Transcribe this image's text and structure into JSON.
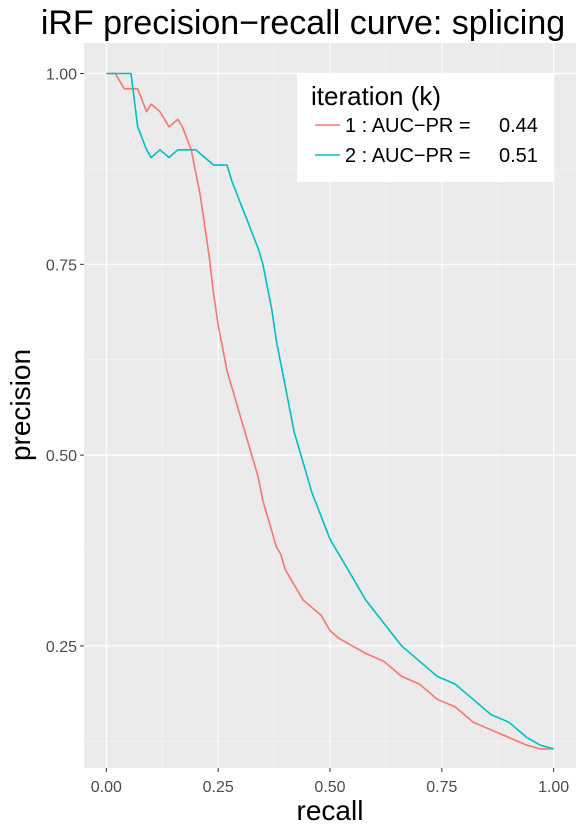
{
  "chart_data": {
    "type": "line",
    "title": "iRF precision−recall curve: splicing",
    "xlabel": "recall",
    "ylabel": "precision",
    "xlim": [
      -0.05,
      1.05
    ],
    "ylim": [
      0.09,
      1.04
    ],
    "x_ticks": [
      0,
      0.25,
      0.5,
      0.75,
      1
    ],
    "x_tick_labels": [
      "0.00",
      "0.25",
      "0.50",
      "0.75",
      "1.00"
    ],
    "y_ticks": [
      0.25,
      0.5,
      0.75,
      1
    ],
    "y_tick_labels": [
      "0.25",
      "0.50",
      "0.75",
      "1.00"
    ],
    "grid": true,
    "legend_position": "top-right",
    "legend": {
      "title": "iteration (k)",
      "entries": [
        {
          "key": "1 : AUC−PR =",
          "value": "0.44"
        },
        {
          "key": "2 : AUC−PR =",
          "value": "0.51"
        }
      ]
    },
    "colors": {
      "panel": "#ebebeb",
      "grid_major": "#ffffff",
      "grid_minor": "#f5f5f5",
      "series_1": "#f8766d",
      "series_2": "#00bfc4"
    },
    "series": [
      {
        "name": "1 : AUC−PR =  0.44",
        "x": [
          0,
          0.02,
          0.04,
          0.06,
          0.07,
          0.09,
          0.1,
          0.12,
          0.14,
          0.16,
          0.17,
          0.19,
          0.2,
          0.21,
          0.22,
          0.23,
          0.24,
          0.25,
          0.26,
          0.27,
          0.28,
          0.29,
          0.3,
          0.31,
          0.32,
          0.33,
          0.34,
          0.35,
          0.36,
          0.37,
          0.38,
          0.39,
          0.4,
          0.42,
          0.44,
          0.46,
          0.48,
          0.5,
          0.52,
          0.55,
          0.58,
          0.62,
          0.66,
          0.7,
          0.74,
          0.78,
          0.82,
          0.86,
          0.9,
          0.94,
          0.97,
          1.0
        ],
        "y": [
          1.0,
          1.0,
          0.98,
          0.98,
          0.98,
          0.95,
          0.96,
          0.95,
          0.93,
          0.94,
          0.93,
          0.9,
          0.87,
          0.84,
          0.8,
          0.76,
          0.71,
          0.67,
          0.64,
          0.61,
          0.59,
          0.57,
          0.55,
          0.53,
          0.51,
          0.49,
          0.47,
          0.44,
          0.42,
          0.4,
          0.38,
          0.37,
          0.35,
          0.33,
          0.31,
          0.3,
          0.29,
          0.27,
          0.26,
          0.25,
          0.24,
          0.23,
          0.21,
          0.2,
          0.18,
          0.17,
          0.15,
          0.14,
          0.13,
          0.12,
          0.115,
          0.115
        ]
      },
      {
        "name": "2 : AUC−PR =  0.51",
        "x": [
          0,
          0.02,
          0.04,
          0.055,
          0.07,
          0.09,
          0.1,
          0.12,
          0.14,
          0.16,
          0.18,
          0.2,
          0.22,
          0.24,
          0.26,
          0.27,
          0.28,
          0.3,
          0.32,
          0.34,
          0.35,
          0.36,
          0.37,
          0.38,
          0.4,
          0.42,
          0.44,
          0.46,
          0.48,
          0.5,
          0.52,
          0.55,
          0.58,
          0.62,
          0.66,
          0.7,
          0.74,
          0.78,
          0.82,
          0.86,
          0.9,
          0.94,
          0.97,
          1.0
        ],
        "y": [
          1.0,
          1.0,
          1.0,
          1.0,
          0.93,
          0.9,
          0.89,
          0.9,
          0.89,
          0.9,
          0.9,
          0.9,
          0.89,
          0.88,
          0.88,
          0.88,
          0.86,
          0.83,
          0.8,
          0.77,
          0.75,
          0.72,
          0.69,
          0.65,
          0.59,
          0.53,
          0.49,
          0.45,
          0.42,
          0.39,
          0.37,
          0.34,
          0.31,
          0.28,
          0.25,
          0.23,
          0.21,
          0.2,
          0.18,
          0.16,
          0.15,
          0.13,
          0.12,
          0.115
        ]
      }
    ]
  }
}
